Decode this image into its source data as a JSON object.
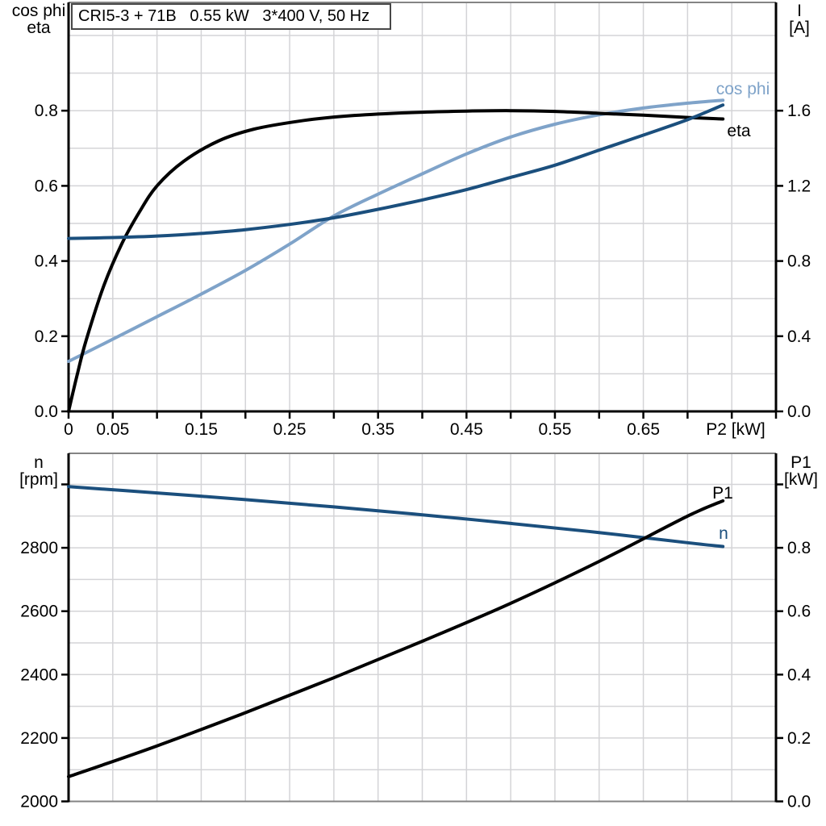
{
  "title": "CRI5-3 + 71B   0.55 kW   3*400 V, 50 Hz",
  "colors": {
    "curve_black": "#000000",
    "curve_dark_blue": "#1b4f7d",
    "curve_light_blue": "#7fa3c9",
    "grid": "#d4d4d7",
    "outer_border": "#848484",
    "axis": "#000000"
  },
  "chart_data": [
    {
      "type": "line",
      "name": "motor-electrical-chart",
      "x_axis": {
        "label": "P2 [kW]",
        "range": [
          0,
          0.8
        ],
        "ticks": [
          {
            "v": 0,
            "t": "0"
          },
          {
            "v": 0.05,
            "t": "0.05"
          },
          {
            "v": 0.1,
            "t": ""
          },
          {
            "v": 0.15,
            "t": "0.15"
          },
          {
            "v": 0.2,
            "t": ""
          },
          {
            "v": 0.25,
            "t": "0.25"
          },
          {
            "v": 0.3,
            "t": ""
          },
          {
            "v": 0.35,
            "t": "0.35"
          },
          {
            "v": 0.4,
            "t": ""
          },
          {
            "v": 0.45,
            "t": "0.45"
          },
          {
            "v": 0.5,
            "t": ""
          },
          {
            "v": 0.55,
            "t": "0.55"
          },
          {
            "v": 0.6,
            "t": ""
          },
          {
            "v": 0.65,
            "t": "0.65"
          },
          {
            "v": 0.7,
            "t": ""
          },
          {
            "v": 0.75,
            "t": ""
          },
          {
            "v": 0.8,
            "t": ""
          }
        ]
      },
      "left_axis": {
        "title_lines": [
          "cos phi",
          "eta"
        ],
        "range": [
          0,
          1.088
        ],
        "grid_step": 0.1,
        "ticks": [
          {
            "v": 0,
            "t": "0.0"
          },
          {
            "v": 0.2,
            "t": "0.2"
          },
          {
            "v": 0.4,
            "t": "0.4"
          },
          {
            "v": 0.6,
            "t": "0.6"
          },
          {
            "v": 0.8,
            "t": "0.8"
          }
        ]
      },
      "right_axis": {
        "title_lines": [
          "I",
          "[A]"
        ],
        "range": [
          0,
          2.176
        ],
        "ticks": [
          {
            "v": 0,
            "t": "0.0"
          },
          {
            "v": 0.4,
            "t": "0.4"
          },
          {
            "v": 0.8,
            "t": "0.8"
          },
          {
            "v": 1.2,
            "t": "1.2"
          },
          {
            "v": 1.6,
            "t": "1.6"
          }
        ]
      },
      "series": [
        {
          "name": "cos_phi",
          "label": "cos phi",
          "scale": "left",
          "color": "#7fa3c9",
          "points": [
            [
              0,
              0.133
            ],
            [
              0.05,
              0.192
            ],
            [
              0.1,
              0.252
            ],
            [
              0.15,
              0.312
            ],
            [
              0.2,
              0.375
            ],
            [
              0.25,
              0.445
            ],
            [
              0.3,
              0.52
            ],
            [
              0.35,
              0.578
            ],
            [
              0.4,
              0.632
            ],
            [
              0.45,
              0.685
            ],
            [
              0.5,
              0.73
            ],
            [
              0.55,
              0.764
            ],
            [
              0.6,
              0.789
            ],
            [
              0.65,
              0.807
            ],
            [
              0.7,
              0.82
            ],
            [
              0.74,
              0.828
            ]
          ]
        },
        {
          "name": "eta",
          "label": "eta",
          "scale": "left",
          "color": "#000000",
          "points": [
            [
              0,
              0
            ],
            [
              0.01,
              0.1
            ],
            [
              0.02,
              0.19
            ],
            [
              0.04,
              0.335
            ],
            [
              0.06,
              0.445
            ],
            [
              0.08,
              0.53
            ],
            [
              0.1,
              0.6
            ],
            [
              0.13,
              0.665
            ],
            [
              0.17,
              0.72
            ],
            [
              0.21,
              0.751
            ],
            [
              0.26,
              0.772
            ],
            [
              0.3,
              0.783
            ],
            [
              0.35,
              0.791
            ],
            [
              0.4,
              0.796
            ],
            [
              0.45,
              0.799
            ],
            [
              0.5,
              0.8
            ],
            [
              0.55,
              0.798
            ],
            [
              0.6,
              0.793
            ],
            [
              0.65,
              0.788
            ],
            [
              0.7,
              0.782
            ],
            [
              0.74,
              0.778
            ]
          ]
        },
        {
          "name": "I",
          "label": "I",
          "scale": "right",
          "color": "#1b4f7d",
          "points": [
            [
              0,
              0.92
            ],
            [
              0.05,
              0.925
            ],
            [
              0.1,
              0.933
            ],
            [
              0.15,
              0.947
            ],
            [
              0.2,
              0.967
            ],
            [
              0.25,
              0.995
            ],
            [
              0.3,
              1.03
            ],
            [
              0.35,
              1.075
            ],
            [
              0.4,
              1.125
            ],
            [
              0.45,
              1.18
            ],
            [
              0.5,
              1.245
            ],
            [
              0.55,
              1.31
            ],
            [
              0.6,
              1.39
            ],
            [
              0.65,
              1.47
            ],
            [
              0.7,
              1.552
            ],
            [
              0.74,
              1.63
            ]
          ]
        }
      ]
    },
    {
      "type": "line",
      "name": "speed-power-chart",
      "x_axis": {
        "label": "",
        "range": [
          0,
          0.8
        ],
        "ticks": [
          {
            "v": 0.05,
            "t": ""
          },
          {
            "v": 0.1,
            "t": ""
          },
          {
            "v": 0.15,
            "t": ""
          },
          {
            "v": 0.2,
            "t": ""
          },
          {
            "v": 0.25,
            "t": ""
          },
          {
            "v": 0.3,
            "t": ""
          },
          {
            "v": 0.35,
            "t": ""
          },
          {
            "v": 0.4,
            "t": ""
          },
          {
            "v": 0.45,
            "t": ""
          },
          {
            "v": 0.5,
            "t": ""
          },
          {
            "v": 0.55,
            "t": ""
          },
          {
            "v": 0.6,
            "t": ""
          },
          {
            "v": 0.65,
            "t": ""
          },
          {
            "v": 0.7,
            "t": ""
          },
          {
            "v": 0.75,
            "t": ""
          }
        ]
      },
      "left_axis": {
        "title_lines": [
          "n",
          "[rpm]"
        ],
        "range": [
          2000,
          3098
        ],
        "grid_step": 100,
        "ticks": [
          {
            "v": 2000,
            "t": "2000"
          },
          {
            "v": 2200,
            "t": "2200"
          },
          {
            "v": 2400,
            "t": "2400"
          },
          {
            "v": 2600,
            "t": "2600"
          },
          {
            "v": 2800,
            "t": "2800"
          },
          {
            "v": 3000,
            "t": ""
          }
        ]
      },
      "right_axis": {
        "title_lines": [
          "P1",
          "[kW]"
        ],
        "range": [
          0,
          1.098
        ],
        "ticks": [
          {
            "v": 0,
            "t": "0.0"
          },
          {
            "v": 0.2,
            "t": "0.2"
          },
          {
            "v": 0.4,
            "t": "0.4"
          },
          {
            "v": 0.6,
            "t": "0.6"
          },
          {
            "v": 0.8,
            "t": "0.8"
          },
          {
            "v": 1.0,
            "t": ""
          }
        ]
      },
      "series": [
        {
          "name": "n",
          "label": "n",
          "scale": "left",
          "color": "#1b4f7d",
          "points": [
            [
              0,
              2993
            ],
            [
              0.1,
              2973
            ],
            [
              0.2,
              2952
            ],
            [
              0.3,
              2929
            ],
            [
              0.4,
              2904
            ],
            [
              0.5,
              2877
            ],
            [
              0.6,
              2848
            ],
            [
              0.7,
              2816
            ],
            [
              0.74,
              2804
            ]
          ]
        },
        {
          "name": "P1",
          "label": "P1",
          "scale": "right",
          "color": "#000000",
          "points": [
            [
              0,
              0.078
            ],
            [
              0.1,
              0.175
            ],
            [
              0.2,
              0.28
            ],
            [
              0.3,
              0.39
            ],
            [
              0.4,
              0.505
            ],
            [
              0.5,
              0.625
            ],
            [
              0.6,
              0.757
            ],
            [
              0.7,
              0.9
            ],
            [
              0.74,
              0.948
            ]
          ]
        }
      ]
    }
  ]
}
